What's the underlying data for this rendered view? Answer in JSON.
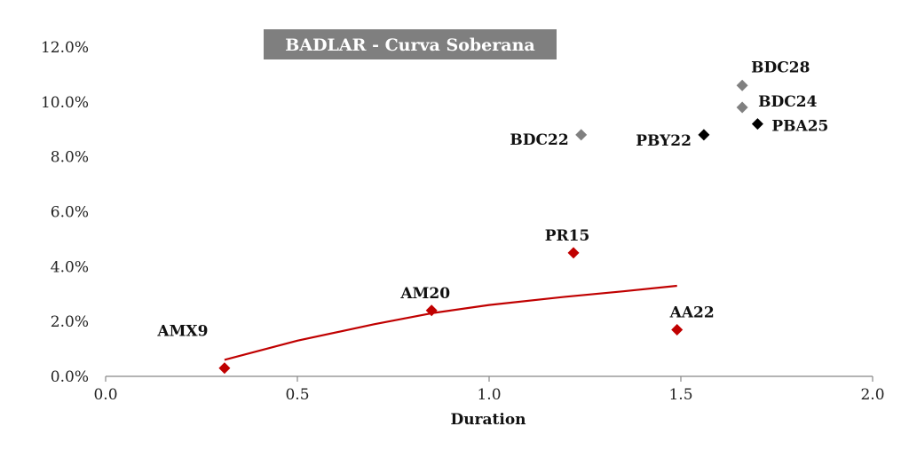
{
  "chart_data": {
    "type": "scatter",
    "title": "BADLAR - Curva Soberana",
    "xlabel": "Duration",
    "ylabel": "",
    "xlim": [
      0.0,
      2.0
    ],
    "ylim": [
      0.0,
      0.12
    ],
    "x_ticks": [
      "0.0",
      "0.5",
      "1.0",
      "1.5",
      "2.0"
    ],
    "y_ticks": [
      "0.0%",
      "2.0%",
      "4.0%",
      "6.0%",
      "8.0%",
      "10.0%",
      "12.0%"
    ],
    "grid": false,
    "legend": "none",
    "colors": {
      "red": "#c00000",
      "gray": "#808080",
      "black": "#000000",
      "title_bg": "#7f7f7f"
    },
    "points": [
      {
        "label": "AMX9",
        "x": 0.31,
        "y": 0.003,
        "color": "red"
      },
      {
        "label": "AM20",
        "x": 0.85,
        "y": 0.024,
        "color": "red"
      },
      {
        "label": "PR15",
        "x": 1.22,
        "y": 0.045,
        "color": "red"
      },
      {
        "label": "AA22",
        "x": 1.49,
        "y": 0.017,
        "color": "red"
      },
      {
        "label": "BDC22",
        "x": 1.24,
        "y": 0.088,
        "color": "gray"
      },
      {
        "label": "BDC28",
        "x": 1.66,
        "y": 0.106,
        "color": "gray"
      },
      {
        "label": "BDC24",
        "x": 1.66,
        "y": 0.098,
        "color": "gray"
      },
      {
        "label": "PBY22",
        "x": 1.56,
        "y": 0.088,
        "color": "black"
      },
      {
        "label": "PBA25",
        "x": 1.7,
        "y": 0.092,
        "color": "black"
      }
    ],
    "trendline": {
      "type": "logarithmic",
      "color": "red",
      "x_range": [
        0.31,
        1.49
      ],
      "points": [
        [
          0.31,
          0.006
        ],
        [
          0.5,
          0.013
        ],
        [
          0.7,
          0.019
        ],
        [
          0.85,
          0.023
        ],
        [
          1.0,
          0.026
        ],
        [
          1.2,
          0.029
        ],
        [
          1.35,
          0.031
        ],
        [
          1.49,
          0.033
        ]
      ]
    }
  }
}
